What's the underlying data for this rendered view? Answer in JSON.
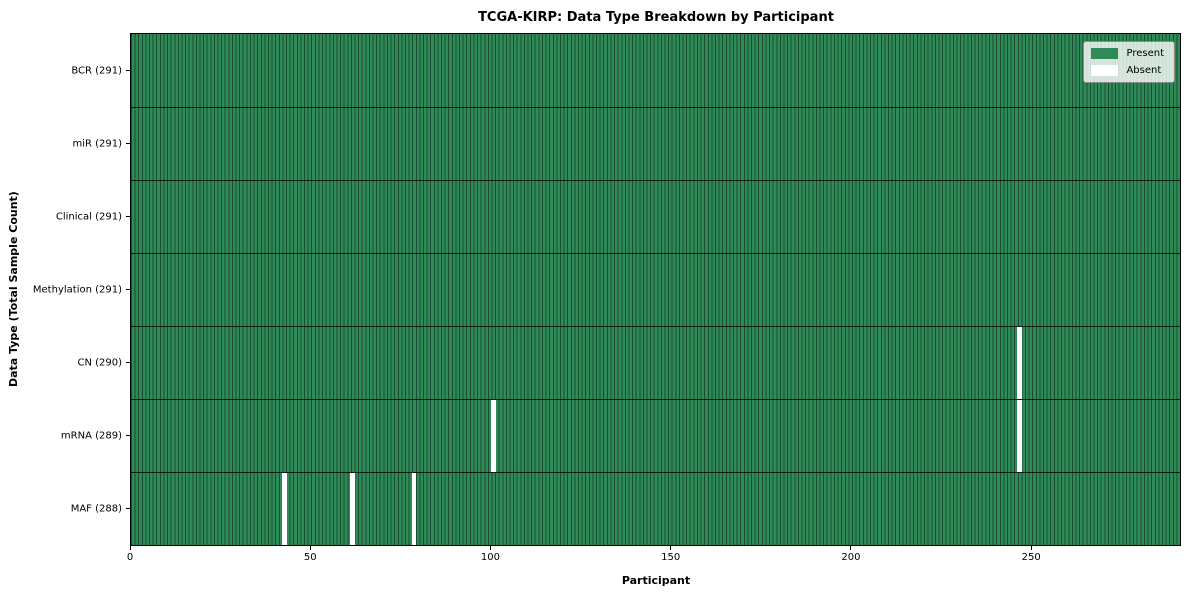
{
  "chart_data": {
    "type": "heatmap",
    "title": "TCGA-KIRP: Data Type Breakdown by Participant",
    "xlabel": "Participant",
    "ylabel": "Data Type (Total Sample Count)",
    "x_range": [
      0,
      291
    ],
    "x_ticks": [
      0,
      50,
      100,
      150,
      200,
      250
    ],
    "n_participants": 291,
    "grid": false,
    "rows": [
      {
        "label": "BCR (291)",
        "data_type": "BCR",
        "present_count": 291,
        "absent_participants": []
      },
      {
        "label": "miR (291)",
        "data_type": "miR",
        "present_count": 291,
        "absent_participants": []
      },
      {
        "label": "Clinical (291)",
        "data_type": "Clinical",
        "present_count": 291,
        "absent_participants": []
      },
      {
        "label": "Methylation (291)",
        "data_type": "Methylation",
        "present_count": 291,
        "absent_participants": []
      },
      {
        "label": "CN (290)",
        "data_type": "CN",
        "present_count": 290,
        "absent_participants": [
          246
        ]
      },
      {
        "label": "mRNA (289)",
        "data_type": "mRNA",
        "present_count": 289,
        "absent_participants": [
          100,
          246
        ]
      },
      {
        "label": "MAF (288)",
        "data_type": "MAF",
        "present_count": 288,
        "absent_participants": [
          42,
          61,
          78
        ]
      }
    ],
    "legend": {
      "position": "upper-right",
      "entries": [
        {
          "label": "Present",
          "color": "#2e8b57"
        },
        {
          "label": "Absent",
          "color": "#ffffff"
        }
      ]
    },
    "colors": {
      "present": "#2e8b57",
      "absent": "#ffffff",
      "cell_edge": "rgba(0,0,0,0.45)",
      "row_divider": "rgba(0,0,0,0.8)",
      "spine": "#000000",
      "text": "#000000"
    }
  }
}
